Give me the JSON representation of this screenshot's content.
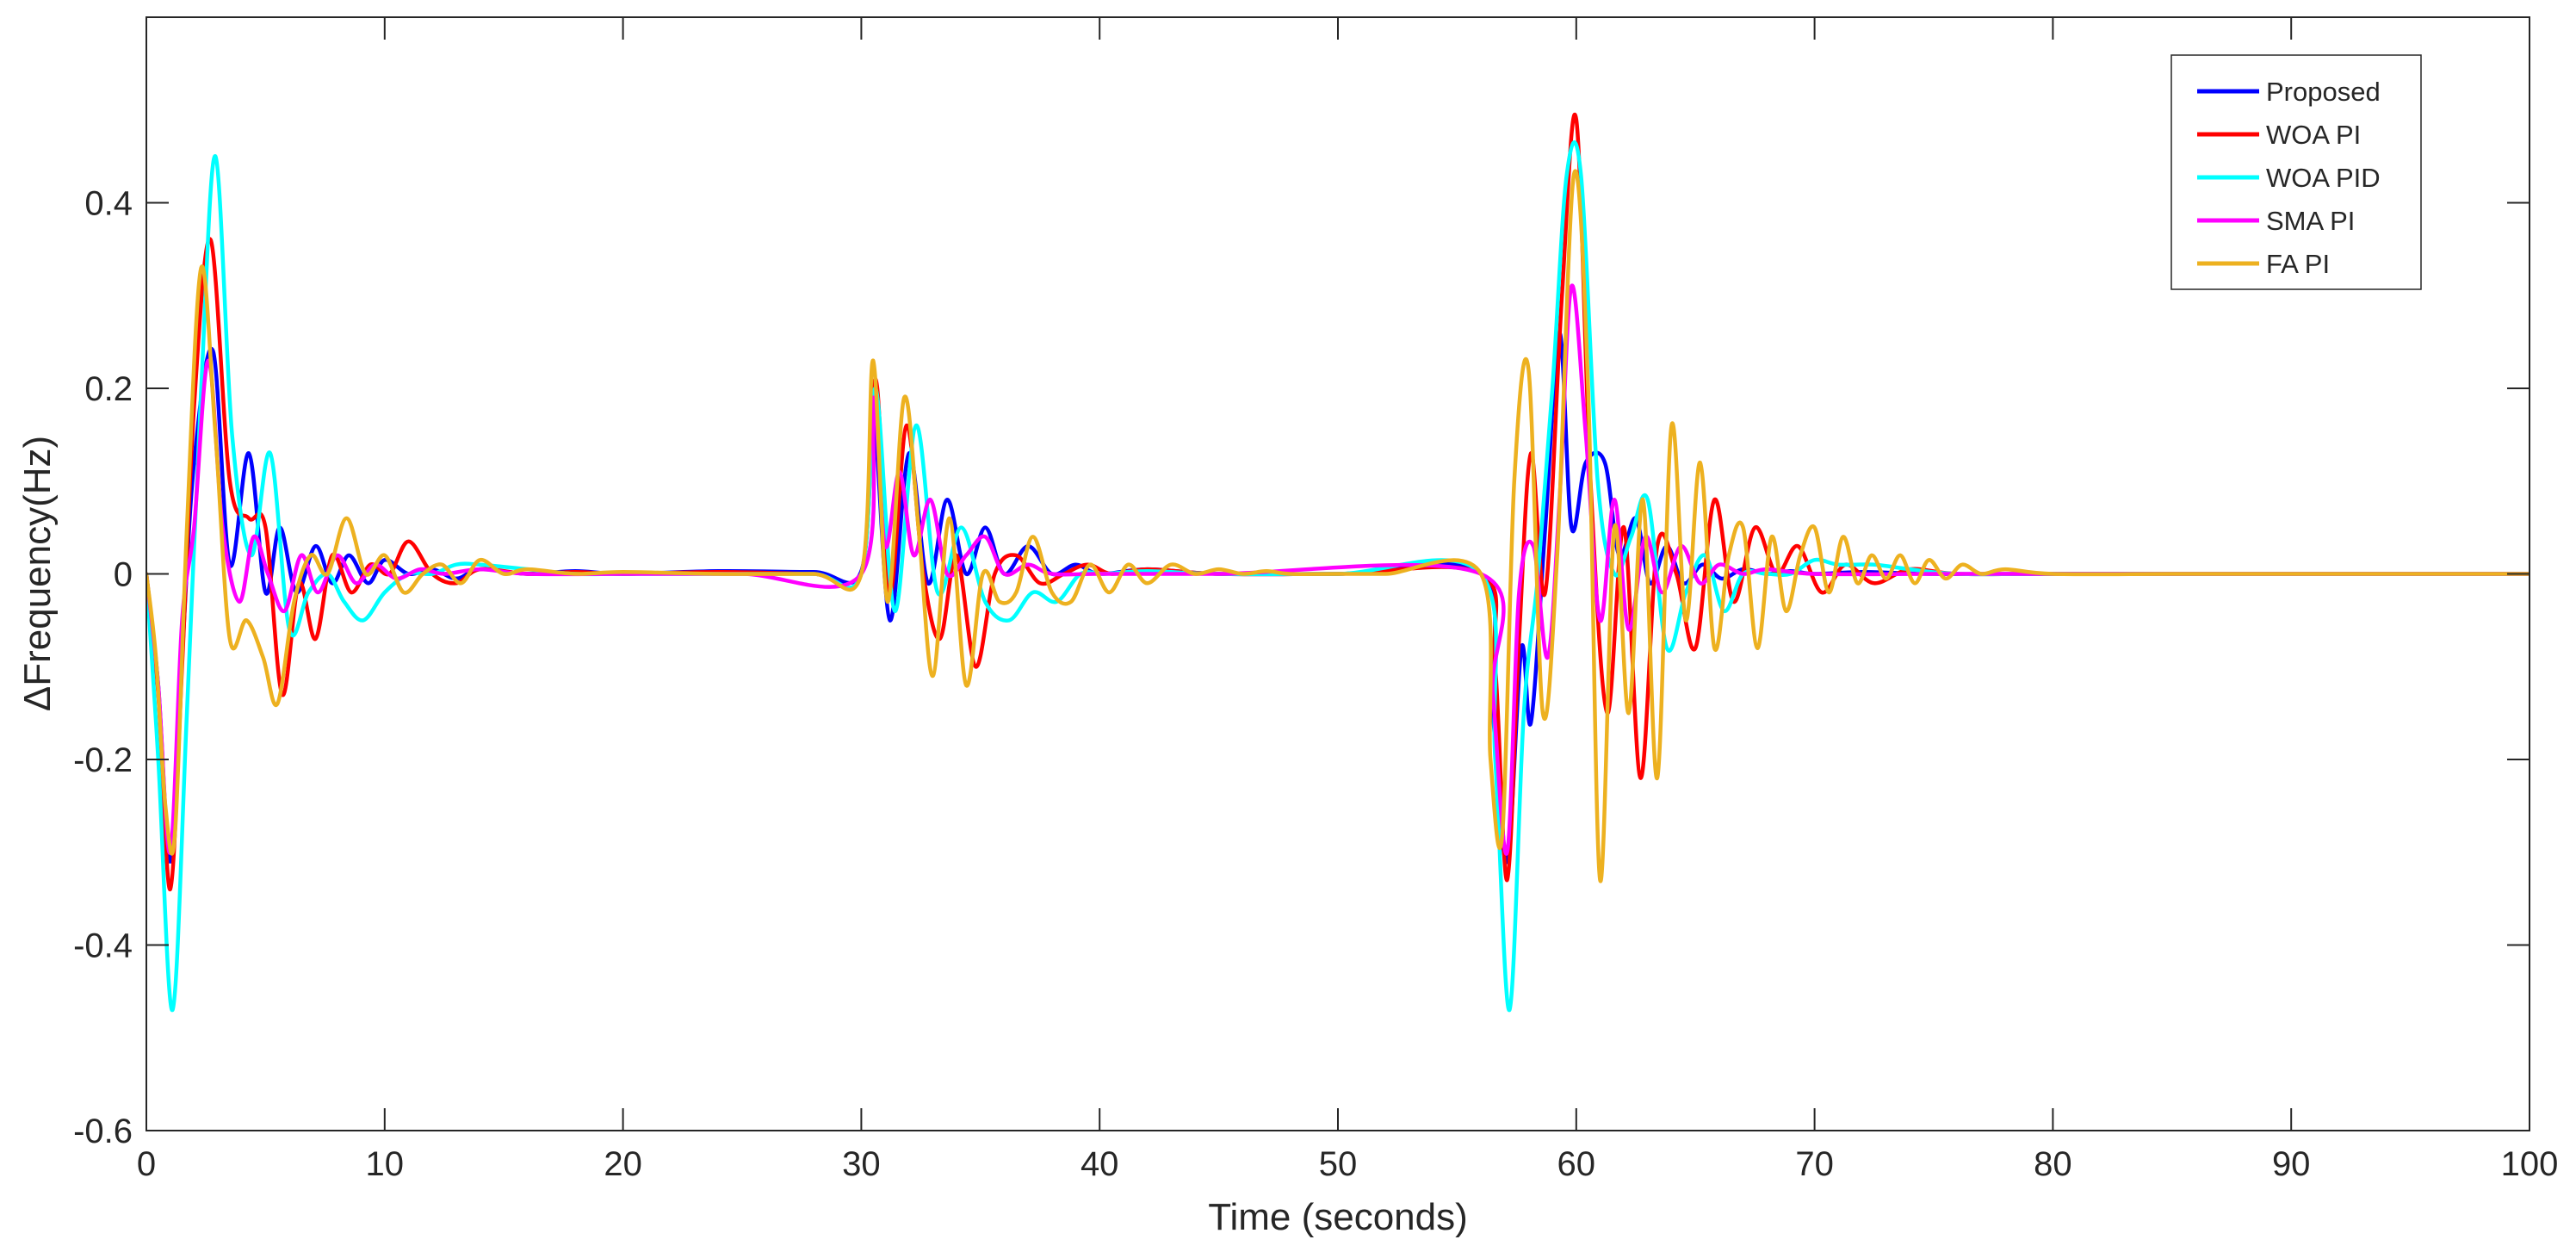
{
  "chart_data": {
    "type": "line",
    "title": "",
    "xlabel": "Time (seconds)",
    "ylabel": "ΔFrequency(Hz)",
    "xlim": [
      0,
      100
    ],
    "ylim": [
      -0.6,
      0.6
    ],
    "xticks": [
      0,
      10,
      20,
      30,
      40,
      50,
      60,
      70,
      80,
      90,
      100
    ],
    "yticks": [
      -0.6,
      -0.4,
      -0.2,
      0,
      0.2,
      0.4
    ],
    "xtick_labels": [
      "0",
      "10",
      "20",
      "30",
      "40",
      "50",
      "60",
      "70",
      "80",
      "90",
      "100"
    ],
    "ytick_labels": [
      "-0.6",
      "-0.4",
      "-0.2",
      "0",
      "0.2",
      "0.4"
    ],
    "grid": false,
    "legend_position": "top-right",
    "series": [
      {
        "name": "Proposed",
        "color": "#0000ff",
        "x": [
          0,
          0.5,
          1.0,
          1.5,
          2.0,
          2.8,
          3.5,
          4.3,
          5.0,
          5.6,
          6.3,
          7.1,
          7.8,
          8.5,
          9.3,
          10.0,
          11.0,
          12.0,
          13.0,
          14.0,
          16.0,
          18.0,
          20.0,
          24.0,
          28.0,
          30.0,
          30.5,
          31.2,
          32.0,
          32.8,
          33.6,
          34.4,
          35.2,
          36.0,
          37.0,
          38.0,
          39.0,
          40.0,
          42.0,
          45.0,
          50.0,
          56.0,
          56.5,
          57.1,
          57.7,
          58.1,
          58.7,
          59.3,
          59.8,
          60.4,
          61.2,
          61.8,
          62.5,
          63.1,
          63.8,
          64.5,
          65.3,
          66.1,
          67.0,
          68.0,
          69.0,
          70.0,
          72.0,
          75.0,
          80.0,
          90.0,
          100.0
        ],
        "y": [
          0,
          -0.12,
          -0.31,
          -0.09,
          0.12,
          0.24,
          0.01,
          0.13,
          -0.02,
          0.05,
          -0.02,
          0.03,
          -0.01,
          0.02,
          -0.01,
          0.015,
          0.0,
          0.005,
          -0.005,
          0.005,
          0.0,
          0.003,
          0.0,
          0.003,
          0.002,
          0.003,
          0.17,
          -0.05,
          0.13,
          -0.01,
          0.08,
          0.0,
          0.05,
          0.0,
          0.03,
          0.0,
          0.01,
          0.0,
          0.005,
          0.0,
          0.0,
          0.0,
          -0.15,
          -0.31,
          -0.08,
          -0.16,
          0.05,
          0.26,
          0.05,
          0.12,
          0.12,
          0.02,
          0.06,
          -0.01,
          0.03,
          -0.01,
          0.01,
          -0.005,
          0.005,
          0.0,
          0.003,
          0.0,
          0.002,
          0.0,
          0.0,
          0.0,
          0.0
        ]
      },
      {
        "name": "WOA PI",
        "color": "#ff0000",
        "x": [
          0,
          0.5,
          1.0,
          1.5,
          2.0,
          2.7,
          3.5,
          4.3,
          5.0,
          5.7,
          6.4,
          7.1,
          7.8,
          8.6,
          9.4,
          10.2,
          11.0,
          12.0,
          13.0,
          14.0,
          16.0,
          18.0,
          20.0,
          24.0,
          28.0,
          30.0,
          30.6,
          31.2,
          31.9,
          32.6,
          33.3,
          34.0,
          34.8,
          35.6,
          36.5,
          37.5,
          38.5,
          39.5,
          40.5,
          42.0,
          45.0,
          50.0,
          56.0,
          56.6,
          57.1,
          57.6,
          58.1,
          58.7,
          59.4,
          60.0,
          60.6,
          61.3,
          62.0,
          62.7,
          63.4,
          64.2,
          65.0,
          65.8,
          66.6,
          67.5,
          68.4,
          69.3,
          70.3,
          71.3,
          72.5,
          74.0,
          76.0,
          80.0,
          90.0,
          100.0
        ],
        "y": [
          0,
          -0.13,
          -0.34,
          -0.1,
          0.18,
          0.36,
          0.1,
          0.06,
          0.05,
          -0.13,
          -0.01,
          -0.07,
          0.02,
          -0.02,
          0.01,
          0.0,
          0.035,
          0.0,
          -0.01,
          0.005,
          0.0,
          0.002,
          0.0,
          0.002,
          0.0,
          0.0,
          0.21,
          -0.02,
          0.16,
          0.0,
          -0.07,
          0.02,
          -0.1,
          0.0,
          0.02,
          -0.01,
          0.0,
          0.01,
          0.0,
          0.005,
          0.0,
          0.0,
          0.0,
          -0.1,
          -0.33,
          -0.07,
          0.13,
          -0.02,
          0.3,
          0.49,
          0.1,
          -0.15,
          0.05,
          -0.22,
          0.03,
          0.0,
          -0.08,
          0.08,
          -0.03,
          0.05,
          0.0,
          0.03,
          -0.02,
          0.01,
          -0.01,
          0.005,
          0.0,
          0.0,
          0.0,
          0.0
        ]
      },
      {
        "name": "WOA PID",
        "color": "#00ffff",
        "x": [
          0,
          0.5,
          1.1,
          1.7,
          2.3,
          2.9,
          3.6,
          4.4,
          5.2,
          6.0,
          6.8,
          7.6,
          8.3,
          9.1,
          10.0,
          11.0,
          12.0,
          13.0,
          14.0,
          16.0,
          18.0,
          20.0,
          24.0,
          28.0,
          30.0,
          30.6,
          31.4,
          32.3,
          33.2,
          34.2,
          35.2,
          36.2,
          37.2,
          38.2,
          39.2,
          40.2,
          42.0,
          45.0,
          50.0,
          56.0,
          56.6,
          57.2,
          57.8,
          58.4,
          59.0,
          59.6,
          60.2,
          60.9,
          61.6,
          62.3,
          63.0,
          63.8,
          64.6,
          65.4,
          66.2,
          67.0,
          68.0,
          69.0,
          70.0,
          71.0,
          72.5,
          74.0,
          76.0,
          80.0,
          90.0,
          100.0
        ],
        "y": [
          0,
          -0.2,
          -0.47,
          -0.15,
          0.2,
          0.45,
          0.15,
          0.02,
          0.13,
          -0.06,
          -0.02,
          0.0,
          -0.03,
          -0.05,
          -0.02,
          0.0,
          0.0,
          0.01,
          0.01,
          0.005,
          0.0,
          0.0,
          0.0,
          0.0,
          0.0,
          0.2,
          -0.04,
          0.16,
          -0.02,
          0.05,
          -0.03,
          -0.05,
          -0.02,
          -0.03,
          0.0,
          0.0,
          0.003,
          0.0,
          0.0,
          0.0,
          -0.2,
          -0.47,
          -0.15,
          0.0,
          0.2,
          0.43,
          0.43,
          0.1,
          0.0,
          0.04,
          0.08,
          -0.08,
          -0.02,
          0.02,
          -0.04,
          0.0,
          0.0,
          0.0,
          0.015,
          0.01,
          0.01,
          0.005,
          0.0,
          0.0,
          0.0,
          0.0
        ]
      },
      {
        "name": "SMA PI",
        "color": "#ff00ff",
        "x": [
          0,
          0.5,
          1.0,
          1.5,
          2.0,
          2.6,
          3.2,
          3.9,
          4.5,
          5.1,
          5.8,
          6.5,
          7.2,
          8.0,
          8.8,
          9.6,
          10.5,
          11.5,
          12.5,
          14.0,
          16.0,
          20.0,
          25.0,
          30.0,
          30.5,
          31.0,
          31.6,
          32.2,
          32.9,
          33.6,
          34.4,
          35.2,
          36.0,
          37.0,
          38.0,
          40.0,
          45.0,
          56.0,
          56.5,
          57.1,
          57.6,
          58.2,
          58.8,
          59.3,
          59.8,
          60.4,
          61.0,
          61.6,
          62.2,
          62.9,
          63.6,
          64.4,
          65.2,
          66.0,
          67.0,
          68.0,
          70.0,
          75.0,
          80.0,
          100.0
        ],
        "y": [
          0,
          -0.12,
          -0.3,
          -0.05,
          0.05,
          0.23,
          0.05,
          -0.03,
          0.04,
          0.0,
          -0.04,
          0.02,
          -0.02,
          0.02,
          -0.01,
          0.01,
          -0.005,
          0.005,
          0.0,
          0.005,
          0.0,
          0.0,
          0.0,
          0.0,
          0.19,
          0.03,
          0.11,
          0.02,
          0.08,
          0.0,
          0.02,
          0.04,
          0.0,
          0.01,
          0.0,
          0.0,
          0.0,
          0.0,
          -0.13,
          -0.3,
          -0.02,
          0.03,
          -0.09,
          0.08,
          0.31,
          0.15,
          -0.05,
          0.08,
          -0.06,
          0.04,
          -0.02,
          0.03,
          -0.01,
          0.01,
          0.0,
          0.005,
          0.0,
          0.0,
          0.0,
          0.0
        ]
      },
      {
        "name": "FA PI",
        "color": "#edb120",
        "x": [
          0,
          0.4,
          0.8,
          1.2,
          1.7,
          2.3,
          2.9,
          3.5,
          4.2,
          4.9,
          5.5,
          6.2,
          6.9,
          7.6,
          8.4,
          9.2,
          10.0,
          10.8,
          11.6,
          12.4,
          13.2,
          14.0,
          15.0,
          16.0,
          18.0,
          20.0,
          24.0,
          28.0,
          30.0,
          30.5,
          31.1,
          31.8,
          32.4,
          33.0,
          33.7,
          34.4,
          35.1,
          35.8,
          36.5,
          37.2,
          38.0,
          38.8,
          39.6,
          40.4,
          41.2,
          42.0,
          43.0,
          44.0,
          45.0,
          46.0,
          47.0,
          48.0,
          50.0,
          52.0,
          56.0,
          56.4,
          56.9,
          57.4,
          58.0,
          58.6,
          59.2,
          59.9,
          60.5,
          61.0,
          61.6,
          62.2,
          62.8,
          63.4,
          64.0,
          64.6,
          65.2,
          65.8,
          66.4,
          67.0,
          67.6,
          68.2,
          68.8,
          69.4,
          70.0,
          70.6,
          71.2,
          71.8,
          72.4,
          73.0,
          73.6,
          74.2,
          74.8,
          75.5,
          76.2,
          77.0,
          78.0,
          80.0,
          85.0,
          90.0,
          100.0
        ],
        "y": [
          0,
          -0.09,
          -0.25,
          -0.28,
          0.05,
          0.33,
          0.15,
          -0.07,
          -0.05,
          -0.09,
          -0.14,
          -0.03,
          0.02,
          0.0,
          0.06,
          0.0,
          0.02,
          -0.02,
          0.0,
          0.01,
          -0.01,
          0.015,
          0.0,
          0.005,
          0.0,
          0.002,
          0.0,
          0.0,
          0.0,
          0.23,
          -0.03,
          0.19,
          0.05,
          -0.11,
          0.06,
          -0.12,
          0.0,
          -0.03,
          -0.02,
          0.04,
          -0.02,
          -0.03,
          0.01,
          -0.02,
          0.01,
          -0.01,
          0.01,
          0.0,
          0.005,
          0.0,
          0.003,
          0.0,
          0.0,
          0.0,
          0.0,
          -0.2,
          -0.28,
          0.1,
          0.22,
          -0.15,
          0.02,
          0.43,
          0.2,
          -0.33,
          0.05,
          -0.15,
          0.08,
          -0.22,
          0.16,
          -0.05,
          0.12,
          -0.08,
          0.02,
          0.05,
          -0.08,
          0.04,
          -0.04,
          0.02,
          0.05,
          -0.02,
          0.04,
          -0.01,
          0.02,
          -0.005,
          0.02,
          -0.01,
          0.015,
          -0.005,
          0.01,
          0.0,
          0.005,
          0.0,
          0.0,
          0.0,
          0.0
        ]
      }
    ]
  }
}
